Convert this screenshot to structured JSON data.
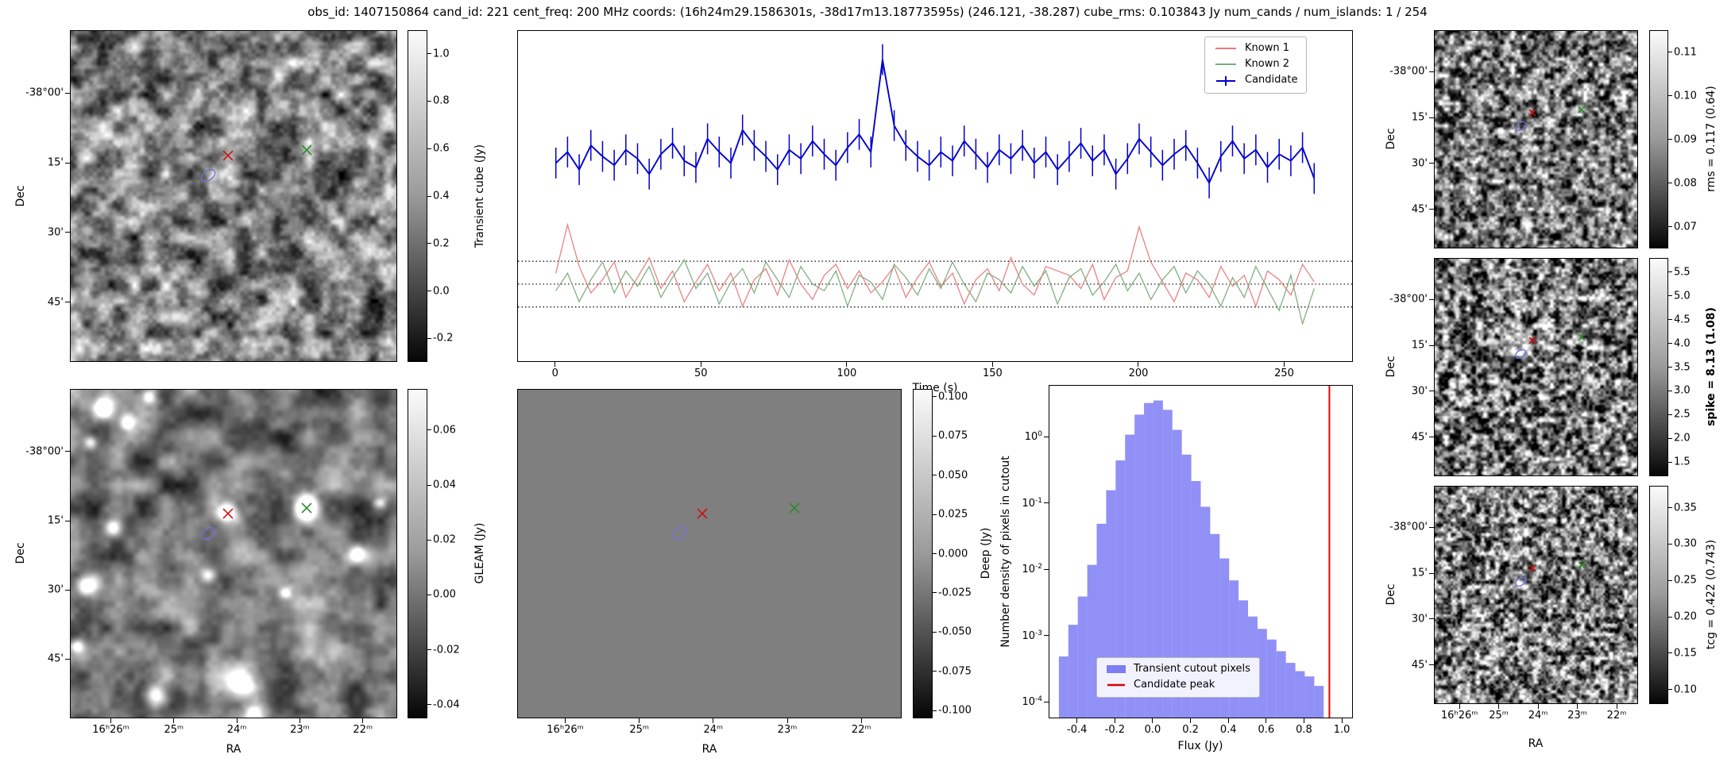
{
  "title": "obs_id: 1407150864 cand_id: 221 cent_freq: 200 MHz coords: (16h24m29.1586301s, -38d17m13.18773595s) (246.121, -38.287) cube_rms: 0.103843 Jy num_cands / num_islands: 1 / 254",
  "colors": {
    "candidate": "#0000cc",
    "known1": "#e87b7b",
    "known2": "#7bab7b",
    "hist_fill": "#7d7df4",
    "hist_line": "#e00000",
    "red_x": "#cc1111",
    "green_x": "#2a8a2a",
    "ellipse": "#7070d8"
  },
  "axes": {
    "dec_label": "Dec",
    "ra_label": "RA",
    "dec_ticks": {
      "labels": [
        "-38°00'",
        "15'",
        "30'",
        "45'"
      ],
      "fracs": [
        0.19,
        0.4,
        0.61,
        0.82
      ]
    },
    "ra_ticks": {
      "labels": [
        "16ʰ26ᵐ",
        "25ᵐ",
        "24ᵐ",
        "23ᵐ",
        "22ᵐ"
      ],
      "fracs": [
        0.125,
        0.3175,
        0.51,
        0.7025,
        0.895
      ]
    }
  },
  "markers": {
    "known1_x": {
      "fx": 0.48,
      "fy": 0.375
    },
    "known2_x": {
      "fx": 0.72,
      "fy": 0.36
    },
    "candidate_ellipse": {
      "fx": 0.42,
      "fy": 0.435
    }
  },
  "colorbars": {
    "cube": {
      "label": "Transient cube (Jy)",
      "ticks": [
        "1.0",
        "0.8",
        "0.6",
        "0.4",
        "0.2",
        "0.0",
        "-0.2"
      ],
      "fracs": [
        0.071,
        0.214,
        0.357,
        0.5,
        0.643,
        0.786,
        0.929
      ]
    },
    "gleam": {
      "label": "GLEAM (Jy)",
      "ticks": [
        "0.06",
        "0.04",
        "0.02",
        "0.00",
        "-0.02",
        "-0.04"
      ],
      "fracs": [
        0.125,
        0.292,
        0.458,
        0.625,
        0.792,
        0.958
      ]
    },
    "deep": {
      "label": "Deep (Jy)",
      "ticks": [
        "0.100",
        "0.075",
        "0.050",
        "0.025",
        "0.000",
        "-0.025",
        "-0.050",
        "-0.075",
        "-0.100"
      ],
      "fracs": [
        0.024,
        0.143,
        0.262,
        0.381,
        0.5,
        0.619,
        0.738,
        0.857,
        0.976
      ]
    },
    "rms": {
      "label": "rms = 0.117 (0.64)",
      "ticks": [
        "0.11",
        "0.10",
        "0.09",
        "0.08",
        "0.07"
      ],
      "fracs": [
        0.1,
        0.3,
        0.5,
        0.7,
        0.9
      ]
    },
    "spike": {
      "label": "spike = 8.13 (1.08)",
      "bold": true,
      "ticks": [
        "5.5",
        "5.0",
        "4.5",
        "4.0",
        "3.5",
        "3.0",
        "2.5",
        "2.0",
        "1.5"
      ],
      "fracs": [
        0.065,
        0.174,
        0.283,
        0.391,
        0.5,
        0.609,
        0.717,
        0.826,
        0.935
      ]
    },
    "tcg": {
      "label": "tcg = 0.422 (0.743)",
      "ticks": [
        "0.35",
        "0.30",
        "0.25",
        "0.20",
        "0.15",
        "0.10"
      ],
      "fracs": [
        0.1,
        0.267,
        0.433,
        0.6,
        0.767,
        0.933
      ]
    }
  },
  "chart_data": [
    {
      "type": "line",
      "name": "candidate-lightcurve",
      "xlabel": "Time (s)",
      "xlim": [
        -13,
        273
      ],
      "ylim": [
        -0.35,
        1.15
      ],
      "xticks": [
        0,
        50,
        100,
        150,
        200,
        250
      ],
      "hlines": [
        0.104,
        0,
        -0.104
      ],
      "legend_position": "upper right",
      "x": [
        0,
        4,
        8,
        12,
        16,
        20,
        24,
        28,
        32,
        36,
        40,
        44,
        48,
        52,
        56,
        60,
        64,
        68,
        72,
        76,
        80,
        84,
        88,
        92,
        96,
        100,
        104,
        108,
        112,
        116,
        120,
        124,
        128,
        132,
        136,
        140,
        144,
        148,
        152,
        156,
        160,
        164,
        168,
        172,
        176,
        180,
        184,
        188,
        192,
        196,
        200,
        204,
        208,
        212,
        216,
        220,
        224,
        228,
        232,
        236,
        240,
        244,
        248,
        252,
        256,
        260
      ],
      "series": [
        {
          "name": "Known 1",
          "values": [
            0.05,
            0.27,
            0.08,
            -0.04,
            0.02,
            0.1,
            -0.06,
            0.03,
            0.12,
            -0.02,
            0.06,
            -0.08,
            0.01,
            0.09,
            -0.03,
            0.05,
            -0.1,
            0.02,
            0.07,
            -0.05,
            0.11,
            0.0,
            -0.07,
            0.04,
            0.09,
            -0.02,
            0.06,
            -0.04,
            0.01,
            0.08,
            -0.06,
            0.03,
            0.1,
            -0.01,
            0.05,
            -0.09,
            0.02,
            0.07,
            -0.03,
            0.12,
            0.0,
            -0.05,
            0.08,
            0.06,
            0.04,
            -0.02,
            0.09,
            -0.07,
            0.03,
            0.06,
            0.26,
            0.1,
            0.01,
            -0.08,
            0.05,
            0.02,
            -0.06,
            0.08,
            -0.01,
            0.04,
            -0.1,
            0.06,
            0.02,
            -0.05,
            0.09,
            0.01
          ]
        },
        {
          "name": "Known 2",
          "values": [
            -0.03,
            0.05,
            -0.08,
            0.02,
            0.1,
            -0.04,
            0.06,
            -0.01,
            0.08,
            -0.06,
            0.03,
            0.11,
            -0.02,
            0.05,
            -0.09,
            0.01,
            0.07,
            -0.04,
            0.1,
            0.02,
            -0.06,
            0.08,
            0.0,
            -0.03,
            0.06,
            -0.1,
            0.04,
            0.01,
            -0.07,
            0.09,
            0.03,
            -0.05,
            0.07,
            -0.02,
            0.1,
            0.0,
            -0.08,
            0.05,
            0.02,
            -0.04,
            0.08,
            -0.01,
            0.06,
            -0.09,
            0.03,
            0.07,
            -0.05,
            0.01,
            0.09,
            -0.03,
            0.05,
            -0.07,
            0.02,
            0.08,
            -0.04,
            0.06,
            0.0,
            -0.1,
            0.03,
            -0.06,
            0.08,
            -0.02,
            -0.12,
            0.04,
            -0.18,
            -0.02
          ]
        },
        {
          "name": "Candidate",
          "yerr": 0.07,
          "values": [
            0.55,
            0.6,
            0.52,
            0.63,
            0.58,
            0.54,
            0.61,
            0.57,
            0.5,
            0.59,
            0.64,
            0.56,
            0.53,
            0.66,
            0.6,
            0.55,
            0.7,
            0.63,
            0.58,
            0.52,
            0.61,
            0.57,
            0.65,
            0.59,
            0.54,
            0.62,
            0.68,
            0.6,
            1.02,
            0.72,
            0.63,
            0.58,
            0.54,
            0.6,
            0.56,
            0.65,
            0.59,
            0.53,
            0.61,
            0.57,
            0.63,
            0.55,
            0.6,
            0.52,
            0.58,
            0.64,
            0.56,
            0.61,
            0.5,
            0.57,
            0.66,
            0.6,
            0.54,
            0.59,
            0.63,
            0.55,
            0.46,
            0.58,
            0.65,
            0.57,
            0.61,
            0.53,
            0.59,
            0.56,
            0.62,
            0.48
          ]
        }
      ]
    },
    {
      "type": "bar",
      "name": "flux-histogram",
      "xlabel": "Flux (Jy)",
      "ylabel": "Number density of pixels in cutout",
      "xlim": [
        -0.55,
        1.05
      ],
      "ylim": [
        6e-05,
        6
      ],
      "yscale": "log",
      "xticks": [
        -0.4,
        -0.2,
        0.0,
        0.2,
        0.4,
        0.6,
        0.8,
        1.0
      ],
      "ytick_exponents": [
        0,
        -1,
        -2,
        -3,
        -4
      ],
      "bin_width": 0.05,
      "bin_left_edges": [
        -0.5,
        -0.45,
        -0.4,
        -0.35,
        -0.3,
        -0.25,
        -0.2,
        -0.15,
        -0.1,
        -0.05,
        0,
        0.05,
        0.1,
        0.15,
        0.2,
        0.25,
        0.3,
        0.35,
        0.4,
        0.45,
        0.5,
        0.55,
        0.6,
        0.65,
        0.7,
        0.75,
        0.8,
        0.85
      ],
      "densities": [
        0.0005,
        0.0015,
        0.004,
        0.012,
        0.05,
        0.16,
        0.45,
        1.1,
        2.2,
        3.3,
        3.6,
        2.6,
        1.3,
        0.55,
        0.22,
        0.09,
        0.035,
        0.015,
        0.007,
        0.0035,
        0.002,
        0.0013,
        0.0009,
        0.0006,
        0.0004,
        0.0003,
        0.00025,
        0.00018
      ],
      "vline": 0.93,
      "legend": [
        "Transient cutout pixels",
        "Candidate peak"
      ],
      "legend_position": "lower center"
    }
  ]
}
